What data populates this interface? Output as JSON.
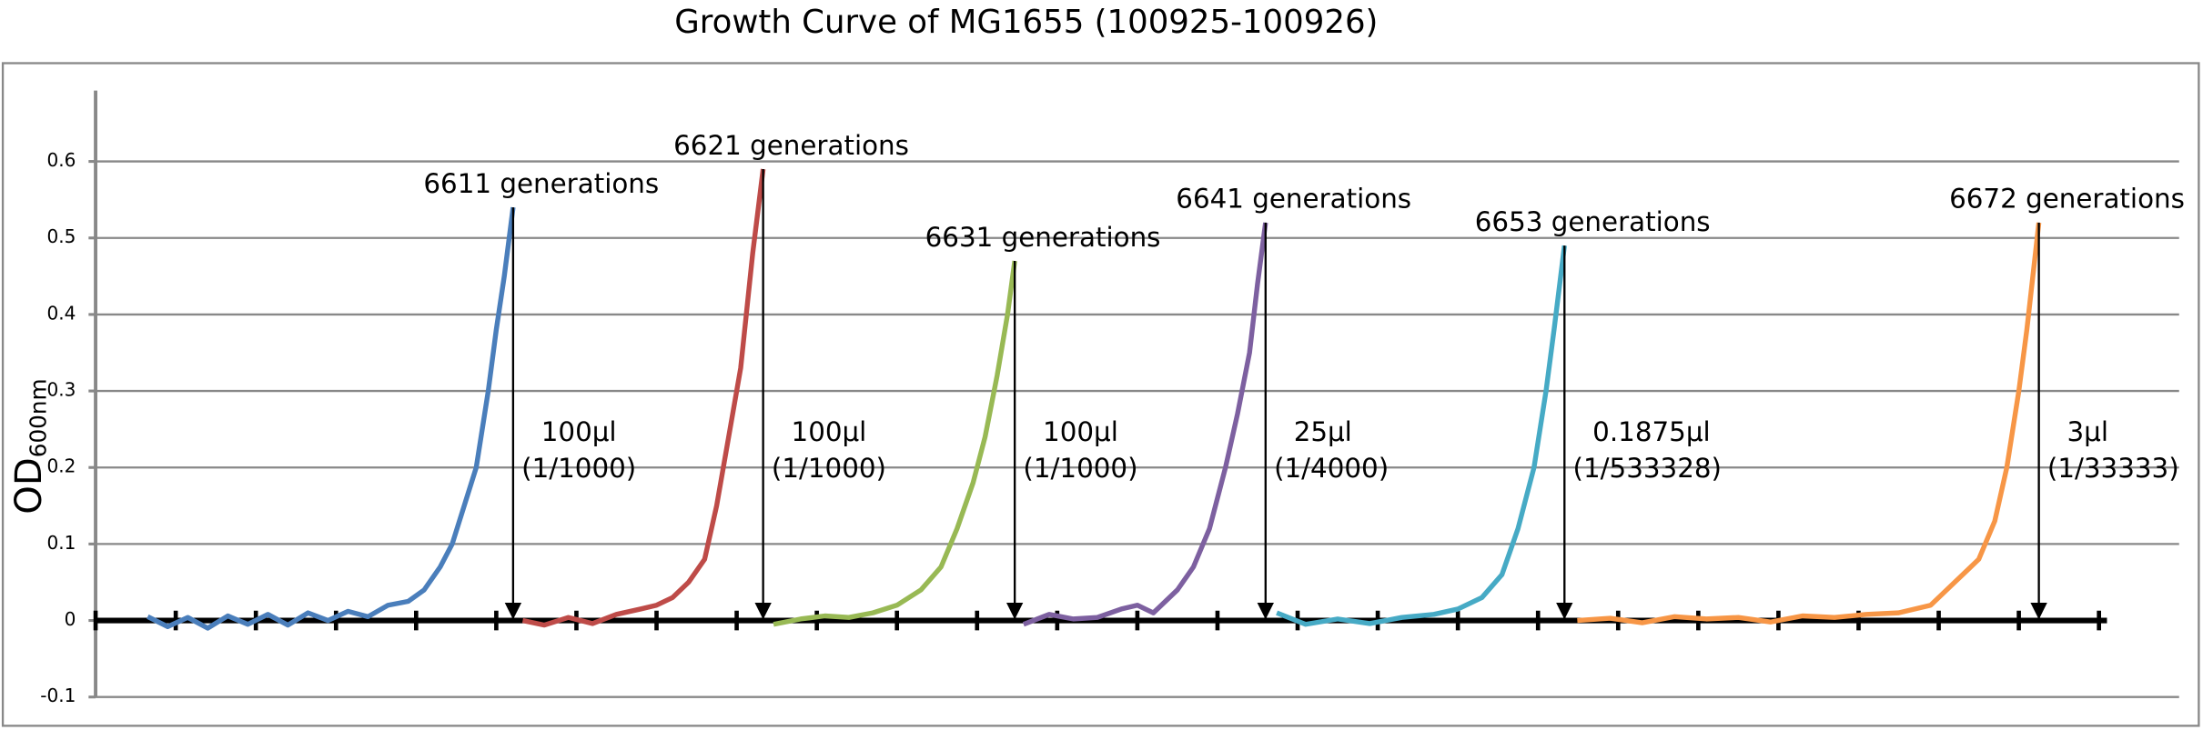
{
  "chart_data": {
    "type": "line",
    "title": "Growth Curve of MG1655 (100925-100926)",
    "ylabel": {
      "main": "OD",
      "sub": "600nm"
    },
    "xlim": [
      0,
      26
    ],
    "xticks": [
      0,
      1,
      2,
      3,
      4,
      5,
      6,
      7,
      8,
      9,
      10,
      11,
      12,
      13,
      14,
      15,
      16,
      17,
      18,
      19,
      20,
      21,
      22,
      23,
      24,
      25
    ],
    "ylim": [
      -0.1,
      0.7
    ],
    "yticks": [
      -0.1,
      0,
      0.1,
      0.2,
      0.3,
      0.4,
      0.5,
      0.6
    ],
    "grid": true,
    "series": [
      {
        "color": "#4a7ebb",
        "annotation": "6611 generations",
        "note": [
          "100μl",
          "(1/1000)"
        ],
        "x": [
          0.65,
          0.9,
          1.15,
          1.4,
          1.65,
          1.9,
          2.15,
          2.4,
          2.65,
          2.9,
          3.15,
          3.4,
          3.65,
          3.9,
          4.1,
          4.3,
          4.45,
          4.6,
          4.75,
          4.9,
          5.0,
          5.1,
          5.21
        ],
        "values": [
          0.005,
          -0.008,
          0.004,
          -0.01,
          0.006,
          -0.005,
          0.008,
          -0.006,
          0.01,
          0.0,
          0.012,
          0.005,
          0.02,
          0.025,
          0.04,
          0.07,
          0.1,
          0.15,
          0.2,
          0.3,
          0.38,
          0.45,
          0.54
        ]
      },
      {
        "color": "#be4b48",
        "annotation": "6621 generations",
        "note": [
          "100μl",
          "(1/1000)"
        ],
        "x": [
          5.33,
          5.6,
          5.9,
          6.2,
          6.5,
          6.8,
          7.0,
          7.2,
          7.4,
          7.6,
          7.75,
          7.9,
          8.05,
          8.2,
          8.33
        ],
        "values": [
          0.0,
          -0.006,
          0.004,
          -0.004,
          0.008,
          0.015,
          0.02,
          0.03,
          0.05,
          0.08,
          0.15,
          0.24,
          0.33,
          0.48,
          0.59
        ]
      },
      {
        "color": "#98b954",
        "annotation": "6631 generations",
        "note": [
          "100μl",
          "(1/1000)"
        ],
        "x": [
          8.46,
          8.8,
          9.1,
          9.4,
          9.7,
          10.0,
          10.3,
          10.55,
          10.75,
          10.95,
          11.1,
          11.25,
          11.38,
          11.47
        ],
        "values": [
          -0.005,
          0.002,
          0.006,
          0.004,
          0.01,
          0.02,
          0.04,
          0.07,
          0.12,
          0.18,
          0.24,
          0.32,
          0.4,
          0.47
        ]
      },
      {
        "color": "#7d60a0",
        "annotation": "6641 generations",
        "note": [
          "25μl",
          "(1/4000)"
        ],
        "x": [
          11.58,
          11.9,
          12.2,
          12.5,
          12.8,
          13.0,
          13.2,
          13.5,
          13.7,
          13.9,
          14.1,
          14.25,
          14.4,
          14.5,
          14.6
        ],
        "values": [
          -0.005,
          0.008,
          0.002,
          0.004,
          0.015,
          0.02,
          0.01,
          0.04,
          0.07,
          0.12,
          0.2,
          0.27,
          0.35,
          0.44,
          0.52
        ]
      },
      {
        "color": "#46aac5",
        "annotation": "6653 generations",
        "note": [
          "0.1875μl",
          "(1/533328)"
        ],
        "x": [
          14.74,
          15.1,
          15.5,
          15.9,
          16.3,
          16.7,
          17.0,
          17.3,
          17.55,
          17.75,
          17.95,
          18.1,
          18.2,
          18.33
        ],
        "values": [
          0.01,
          -0.005,
          0.002,
          -0.004,
          0.004,
          0.008,
          0.015,
          0.03,
          0.06,
          0.12,
          0.2,
          0.3,
          0.38,
          0.49
        ]
      },
      {
        "color": "#f79646",
        "annotation": "6672 generations",
        "note": [
          "3μl",
          "(1/33333)"
        ],
        "x": [
          18.49,
          18.9,
          19.3,
          19.7,
          20.1,
          20.5,
          20.9,
          21.3,
          21.7,
          22.1,
          22.5,
          22.9,
          23.2,
          23.5,
          23.7,
          23.85,
          24.0,
          24.1,
          24.25
        ],
        "values": [
          0.0,
          0.003,
          -0.003,
          0.005,
          0.002,
          0.004,
          -0.002,
          0.006,
          0.004,
          0.008,
          0.01,
          0.02,
          0.05,
          0.08,
          0.13,
          0.2,
          0.3,
          0.38,
          0.52
        ]
      }
    ]
  }
}
